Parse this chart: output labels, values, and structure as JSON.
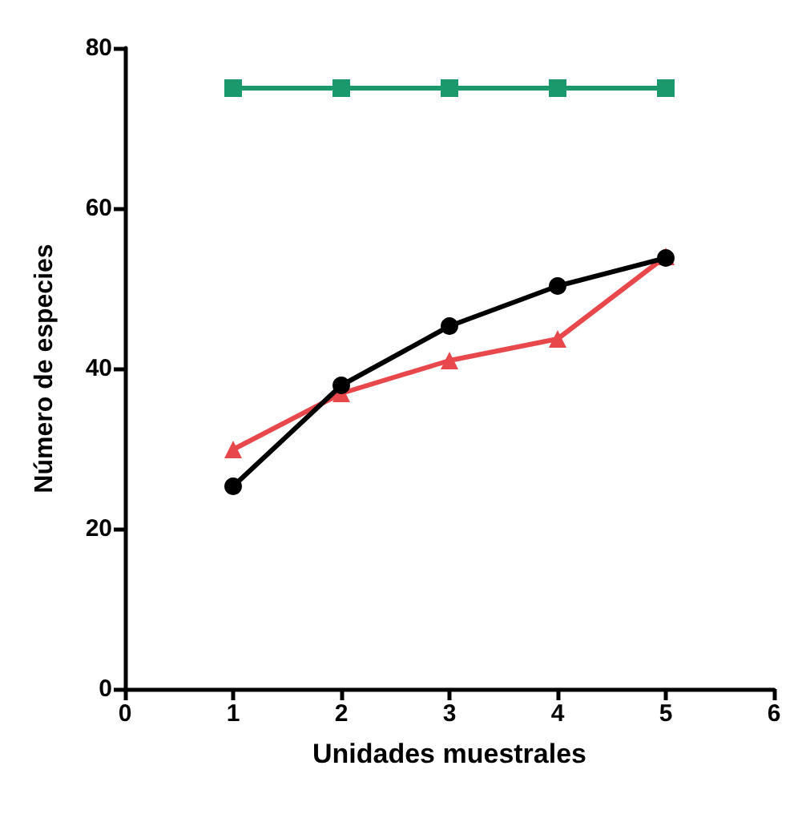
{
  "chart_data": {
    "type": "line",
    "xlabel": "Unidades muestrales",
    "ylabel": "Número de especies",
    "x": [
      1,
      2,
      3,
      4,
      5
    ],
    "series": [
      {
        "color": "#1a9a6c",
        "marker": "square",
        "values": [
          75,
          75,
          75,
          75,
          75
        ]
      },
      {
        "color": "#e8474c",
        "marker": "triangle",
        "values": [
          29.9,
          36.9,
          41,
          43.7,
          54
        ]
      },
      {
        "color": "#000000",
        "marker": "circle",
        "values": [
          25.3,
          37.9,
          45.3,
          50.3,
          53.8
        ]
      }
    ],
    "xlim": [
      0,
      6
    ],
    "xticks": [
      0,
      1,
      2,
      3,
      4,
      5,
      6
    ],
    "ylim": [
      0,
      80
    ],
    "yticks": [
      0,
      20,
      40,
      60,
      80
    ],
    "grid": false,
    "line_style": "solid"
  }
}
